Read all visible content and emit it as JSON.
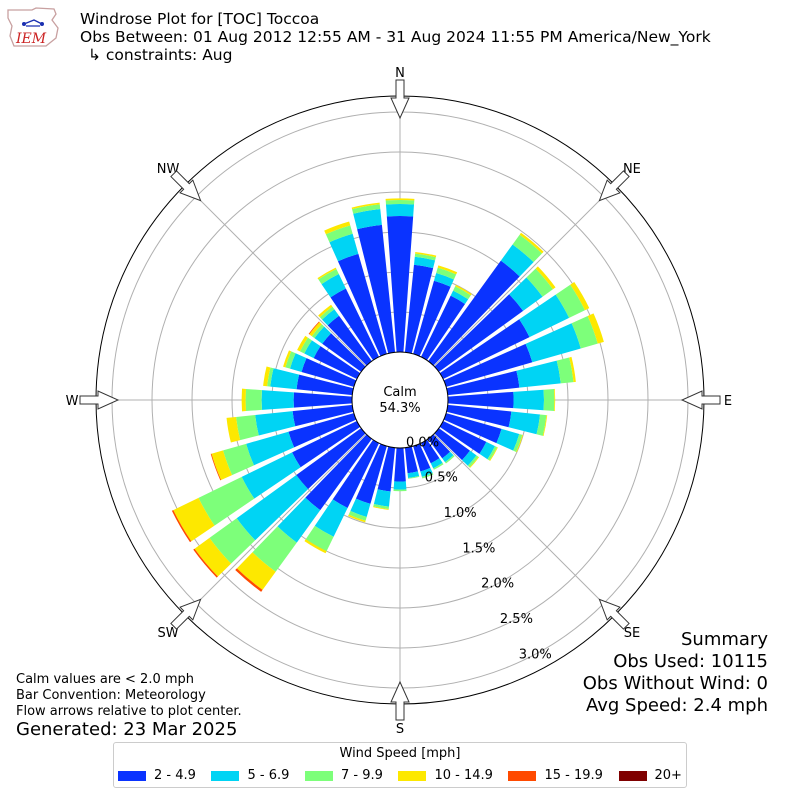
{
  "header": {
    "logo_text": "IEM",
    "title": "Windrose Plot for [TOC] Toccoa",
    "obs_between": "Obs Between: 01 Aug 2012 12:55 AM - 31 Aug 2024 11:55 PM America/New_York",
    "constraints": "↳ constraints: Aug"
  },
  "calm": {
    "label": "Calm",
    "value": "54.3%"
  },
  "directions": [
    "N",
    "NE",
    "E",
    "SE",
    "S",
    "SW",
    "W",
    "NW"
  ],
  "summary": {
    "title": "Summary",
    "obs_used": "Obs Used: 10115",
    "obs_without_wind": "Obs Without Wind: 0",
    "avg_speed": "Avg Speed: 2.4 mph"
  },
  "notes": {
    "calm_note": "Calm values are < 2.0 mph",
    "bar_convention": "Bar Convention: Meteorology",
    "flow_arrows": "Flow arrows relative to plot center.",
    "generated": "Generated: 23 Mar 2025"
  },
  "legend": {
    "title": "Wind Speed [mph]",
    "bins": [
      {
        "label": "2 - 4.9",
        "color": "#0a33ff"
      },
      {
        "label": "5 - 6.9",
        "color": "#00d4f4"
      },
      {
        "label": "7 - 9.9",
        "color": "#7dff7a"
      },
      {
        "label": "10 - 14.9",
        "color": "#fde800"
      },
      {
        "label": "15 - 19.9",
        "color": "#ff4a00"
      },
      {
        "label": "20+",
        "color": "#7f0000"
      }
    ]
  },
  "chart_data": {
    "type": "windrose",
    "convention": "meteorology",
    "radial_unit": "%",
    "radial_ticks": [
      "0.0%",
      "0.5%",
      "1.0%",
      "1.5%",
      "2.0%",
      "2.5%",
      "3.0%"
    ],
    "radial_max": 3.2,
    "calm_percent": 54.3,
    "sectors": [
      {
        "dir": 0,
        "cumulative": [
          1.7,
          1.85,
          1.9,
          1.92,
          1.92,
          1.92
        ]
      },
      {
        "dir": 10,
        "cumulative": [
          1.1,
          1.2,
          1.24,
          1.26,
          1.26,
          1.26
        ]
      },
      {
        "dir": 20,
        "cumulative": [
          0.95,
          1.05,
          1.12,
          1.15,
          1.15,
          1.15
        ]
      },
      {
        "dir": 30,
        "cumulative": [
          0.85,
          0.92,
          0.98,
          1.0,
          1.0,
          1.0
        ]
      },
      {
        "dir": 40,
        "cumulative": [
          1.55,
          1.8,
          1.95,
          1.98,
          1.98,
          1.98
        ]
      },
      {
        "dir": 50,
        "cumulative": [
          1.3,
          1.6,
          1.76,
          1.8,
          1.8,
          1.8
        ]
      },
      {
        "dir": 60,
        "cumulative": [
          1.2,
          1.75,
          1.97,
          2.03,
          2.03,
          2.03
        ]
      },
      {
        "dir": 70,
        "cumulative": [
          1.12,
          1.75,
          1.97,
          2.05,
          2.05,
          2.05
        ]
      },
      {
        "dir": 80,
        "cumulative": [
          0.9,
          1.42,
          1.58,
          1.61,
          1.61,
          1.61
        ]
      },
      {
        "dir": 90,
        "cumulative": [
          0.82,
          1.2,
          1.33,
          1.34,
          1.34,
          1.34
        ]
      },
      {
        "dir": 100,
        "cumulative": [
          0.8,
          1.16,
          1.24,
          1.25,
          1.25,
          1.25
        ]
      },
      {
        "dir": 110,
        "cumulative": [
          0.72,
          0.95,
          0.99,
          1.0,
          1.0,
          1.0
        ]
      },
      {
        "dir": 120,
        "cumulative": [
          0.6,
          0.72,
          0.75,
          0.76,
          0.76,
          0.76
        ]
      },
      {
        "dir": 130,
        "cumulative": [
          0.48,
          0.58,
          0.61,
          0.62,
          0.62,
          0.62
        ]
      },
      {
        "dir": 140,
        "cumulative": [
          0.3,
          0.36,
          0.38,
          0.38,
          0.38,
          0.38
        ]
      },
      {
        "dir": 150,
        "cumulative": [
          0.28,
          0.35,
          0.37,
          0.37,
          0.37,
          0.37
        ]
      },
      {
        "dir": 160,
        "cumulative": [
          0.33,
          0.4,
          0.42,
          0.42,
          0.42,
          0.42
        ]
      },
      {
        "dir": 170,
        "cumulative": [
          0.32,
          0.38,
          0.39,
          0.39,
          0.39,
          0.39
        ]
      },
      {
        "dir": 180,
        "cumulative": [
          0.42,
          0.52,
          0.54,
          0.54,
          0.54,
          0.54
        ]
      },
      {
        "dir": 190,
        "cumulative": [
          0.55,
          0.74,
          0.77,
          0.78,
          0.78,
          0.78
        ]
      },
      {
        "dir": 200,
        "cumulative": [
          0.75,
          0.92,
          0.97,
          0.99,
          0.99,
          0.99
        ]
      },
      {
        "dir": 210,
        "cumulative": [
          0.9,
          1.3,
          1.5,
          1.53,
          1.53,
          1.53
        ]
      },
      {
        "dir": 220,
        "cumulative": [
          1.1,
          1.6,
          2.05,
          2.33,
          2.36,
          2.36
        ]
      },
      {
        "dir": 230,
        "cumulative": [
          1.0,
          1.92,
          2.34,
          2.57,
          2.59,
          2.59
        ]
      },
      {
        "dir": 240,
        "cumulative": [
          0.9,
          1.6,
          2.2,
          2.55,
          2.57,
          2.57
        ]
      },
      {
        "dir": 250,
        "cumulative": [
          0.85,
          1.4,
          1.7,
          1.85,
          1.86,
          1.86
        ]
      },
      {
        "dir": 260,
        "cumulative": [
          0.75,
          1.22,
          1.46,
          1.58,
          1.58,
          1.58
        ]
      },
      {
        "dir": 270,
        "cumulative": [
          0.73,
          1.13,
          1.33,
          1.38,
          1.38,
          1.38
        ]
      },
      {
        "dir": 280,
        "cumulative": [
          0.7,
          1.03,
          1.07,
          1.12,
          1.12,
          1.12
        ]
      },
      {
        "dir": 290,
        "cumulative": [
          0.68,
          0.83,
          0.89,
          0.92,
          0.92,
          0.92
        ]
      },
      {
        "dir": 300,
        "cumulative": [
          0.6,
          0.73,
          0.79,
          0.83,
          0.83,
          0.83
        ]
      },
      {
        "dir": 310,
        "cumulative": [
          0.6,
          0.72,
          0.76,
          0.8,
          0.81,
          0.81
        ]
      },
      {
        "dir": 320,
        "cumulative": [
          0.7,
          0.8,
          0.84,
          0.87,
          0.87,
          0.87
        ]
      },
      {
        "dir": 330,
        "cumulative": [
          0.95,
          1.15,
          1.22,
          1.24,
          1.24,
          1.24
        ]
      },
      {
        "dir": 340,
        "cumulative": [
          1.3,
          1.56,
          1.67,
          1.72,
          1.72,
          1.72
        ]
      },
      {
        "dir": 350,
        "cumulative": [
          1.6,
          1.8,
          1.86,
          1.88,
          1.88,
          1.88
        ]
      }
    ]
  }
}
